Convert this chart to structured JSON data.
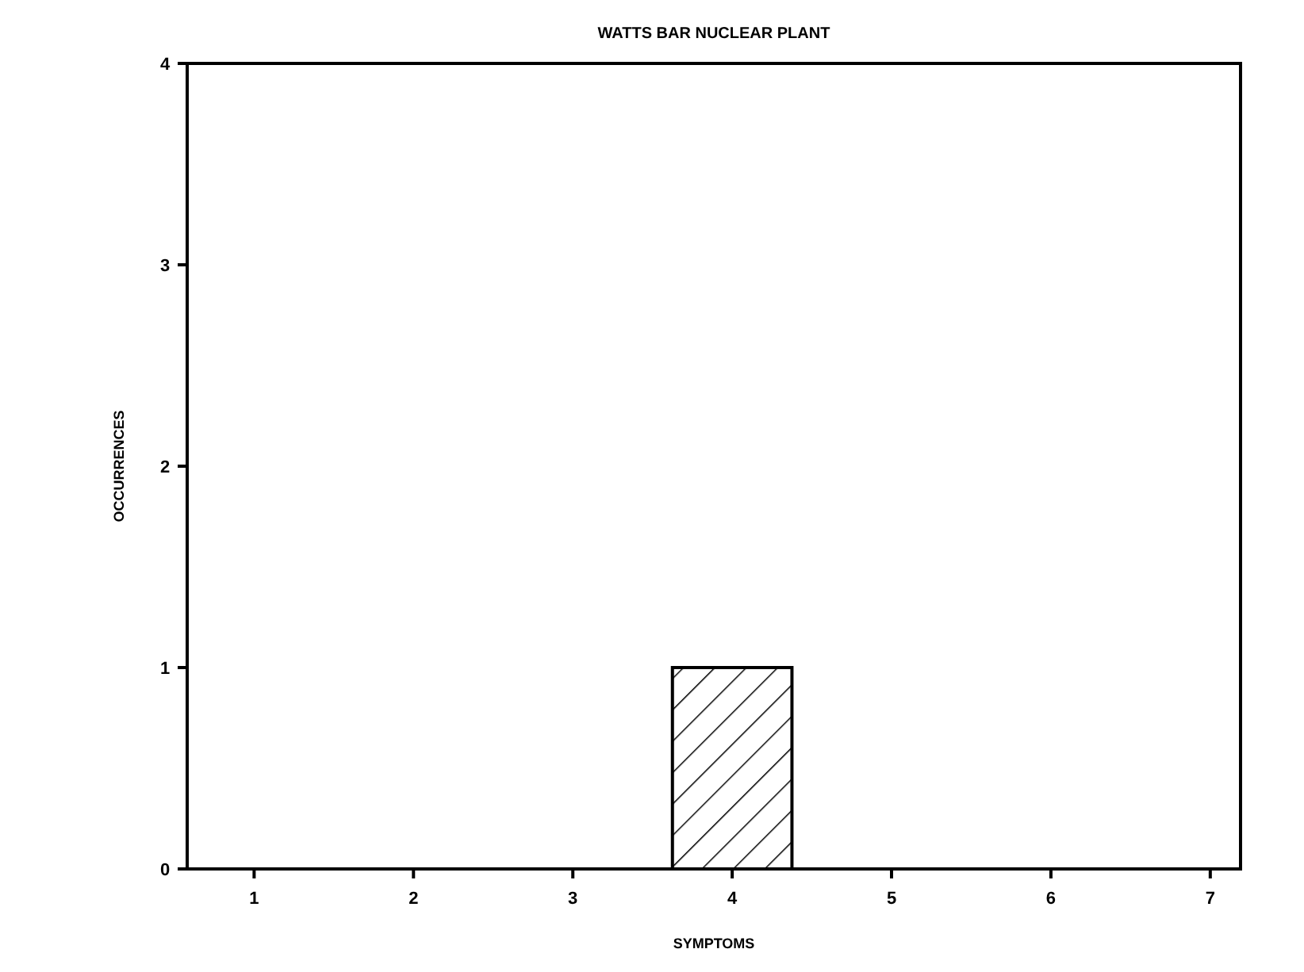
{
  "chart_data": {
    "type": "bar",
    "title": "WATTS BAR NUCLEAR PLANT",
    "xlabel": "SYMPTOMS",
    "ylabel": "OCCURRENCES",
    "categories": [
      "1",
      "2",
      "3",
      "4",
      "5",
      "6",
      "7"
    ],
    "values": [
      0,
      0,
      0,
      1,
      0,
      0,
      0
    ],
    "color": "#000000",
    "ylim": [
      0,
      4
    ],
    "yticks": [
      0,
      1,
      2,
      3,
      4
    ],
    "grid": false
  }
}
